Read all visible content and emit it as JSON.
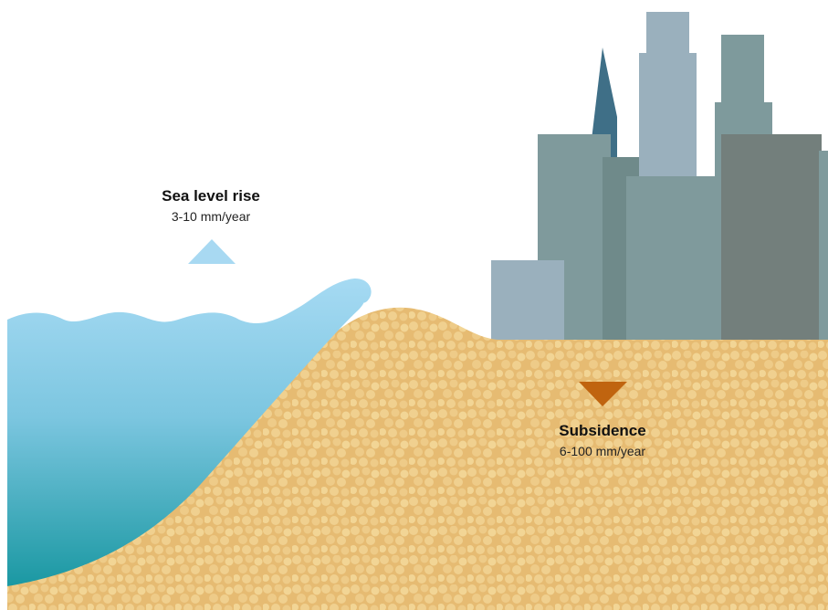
{
  "labels": {
    "sea_level": {
      "title": "Sea level rise",
      "rate": "3-10 mm/year"
    },
    "subsidence": {
      "title": "Subsidence",
      "rate": "6-100 mm/year"
    }
  }
}
